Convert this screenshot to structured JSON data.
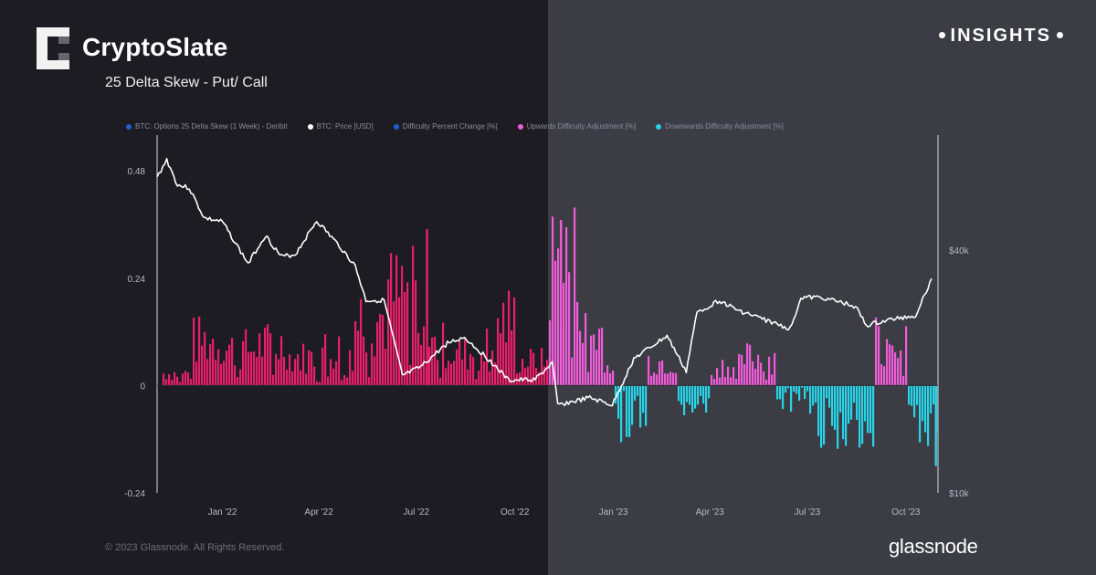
{
  "header": {
    "brand": "CryptoSlate",
    "subtitle": "25 Delta Skew - Put/ Call",
    "insights": "INSIGHTS"
  },
  "footer": {
    "copyright": "© 2023 Glassnode. All Rights Reserved.",
    "glassnode": "glassnode"
  },
  "legend": [
    {
      "label": "BTC: Options 25 Delta Skew (1 Week) - Deribit",
      "color": "#1f5fd6"
    },
    {
      "label": "BTC: Price [USD]",
      "color": "#ffffff"
    },
    {
      "label": "Difficulty Percent Change [%]",
      "color": "#1f5fd6"
    },
    {
      "label": "Upwards Difficulty Adjustment [%]",
      "color": "#f05bd8"
    },
    {
      "label": "Downwards Difficulty Adjustment [%]",
      "color": "#27d4e8"
    }
  ],
  "chart_data": {
    "type": "bar",
    "x_range": [
      "2021-11-01",
      "2023-10-31"
    ],
    "x_ticks": [
      "Jan '22",
      "Apr '22",
      "Jul '22",
      "Oct '22",
      "Jan '23",
      "Apr '23",
      "Jul '23",
      "Oct '23"
    ],
    "y_left": {
      "ticks": [
        "0.48",
        "0.24",
        "0",
        "-0.24"
      ],
      "ylim": [
        -0.24,
        0.56
      ]
    },
    "y_right": {
      "ticks": [
        "$40k",
        "$10k"
      ],
      "scale": "log"
    },
    "colors": {
      "skew_positive_2022": "#e8206a",
      "skew_positive_2023": "#f05bd8",
      "skew_negative": "#27d4e8",
      "price": "#ffffff"
    },
    "series": [
      {
        "name": "BTC: Options 25 Delta Skew (1 Week) - Deribit",
        "type": "bar",
        "monthly": [
          {
            "month": "2021-11",
            "value": 0.03
          },
          {
            "month": "2021-12",
            "value": 0.11
          },
          {
            "month": "2022-01",
            "value": 0.09
          },
          {
            "month": "2022-02",
            "value": 0.1
          },
          {
            "month": "2022-03",
            "value": 0.07
          },
          {
            "month": "2022-04",
            "value": 0.09
          },
          {
            "month": "2022-05",
            "value": 0.17
          },
          {
            "month": "2022-06",
            "value": 0.22
          },
          {
            "month": "2022-07",
            "value": 0.1
          },
          {
            "month": "2022-08",
            "value": 0.08
          },
          {
            "month": "2022-09",
            "value": 0.16
          },
          {
            "month": "2022-10",
            "value": 0.06
          },
          {
            "month": "2022-11",
            "value": 0.3
          },
          {
            "month": "2022-12",
            "value": 0.13
          },
          {
            "month": "2023-01",
            "value": -0.09
          },
          {
            "month": "2023-02",
            "value": 0.06
          },
          {
            "month": "2023-03",
            "value": -0.05
          },
          {
            "month": "2023-04",
            "value": 0.05
          },
          {
            "month": "2023-05",
            "value": 0.07
          },
          {
            "month": "2023-06",
            "value": -0.05
          },
          {
            "month": "2023-07",
            "value": -0.1
          },
          {
            "month": "2023-08",
            "value": -0.11
          },
          {
            "month": "2023-09",
            "value": 0.12
          },
          {
            "month": "2023-10",
            "value": -0.1
          }
        ]
      },
      {
        "name": "BTC: Price [USD]",
        "type": "line",
        "points": [
          {
            "date": "2021-11-01",
            "usd": 60500
          },
          {
            "date": "2021-11-10",
            "usd": 67000
          },
          {
            "date": "2021-11-20",
            "usd": 58000
          },
          {
            "date": "2021-12-01",
            "usd": 57000
          },
          {
            "date": "2021-12-15",
            "usd": 48000
          },
          {
            "date": "2022-01-01",
            "usd": 47000
          },
          {
            "date": "2022-01-25",
            "usd": 37000
          },
          {
            "date": "2022-02-10",
            "usd": 43500
          },
          {
            "date": "2022-02-25",
            "usd": 38500
          },
          {
            "date": "2022-03-10",
            "usd": 39000
          },
          {
            "date": "2022-03-30",
            "usd": 47300
          },
          {
            "date": "2022-04-20",
            "usd": 41000
          },
          {
            "date": "2022-05-05",
            "usd": 36500
          },
          {
            "date": "2022-05-15",
            "usd": 30000
          },
          {
            "date": "2022-06-01",
            "usd": 30000
          },
          {
            "date": "2022-06-18",
            "usd": 19500
          },
          {
            "date": "2022-07-05",
            "usd": 20500
          },
          {
            "date": "2022-07-30",
            "usd": 23500
          },
          {
            "date": "2022-08-15",
            "usd": 24300
          },
          {
            "date": "2022-09-10",
            "usd": 21000
          },
          {
            "date": "2022-09-25",
            "usd": 19000
          },
          {
            "date": "2022-10-20",
            "usd": 19100
          },
          {
            "date": "2022-11-05",
            "usd": 21000
          },
          {
            "date": "2022-11-10",
            "usd": 16500
          },
          {
            "date": "2022-12-10",
            "usd": 17200
          },
          {
            "date": "2022-12-31",
            "usd": 16500
          },
          {
            "date": "2023-01-20",
            "usd": 21500
          },
          {
            "date": "2023-02-20",
            "usd": 24500
          },
          {
            "date": "2023-03-10",
            "usd": 20000
          },
          {
            "date": "2023-03-20",
            "usd": 28000
          },
          {
            "date": "2023-04-10",
            "usd": 30000
          },
          {
            "date": "2023-04-25",
            "usd": 28500
          },
          {
            "date": "2023-05-20",
            "usd": 27000
          },
          {
            "date": "2023-06-15",
            "usd": 25500
          },
          {
            "date": "2023-06-25",
            "usd": 30500
          },
          {
            "date": "2023-07-15",
            "usd": 30500
          },
          {
            "date": "2023-08-15",
            "usd": 29000
          },
          {
            "date": "2023-08-25",
            "usd": 26000
          },
          {
            "date": "2023-09-20",
            "usd": 27000
          },
          {
            "date": "2023-10-10",
            "usd": 27500
          },
          {
            "date": "2023-10-25",
            "usd": 34000
          }
        ]
      },
      {
        "name": "Difficulty Percent Change [%]",
        "type": "bar"
      },
      {
        "name": "Upwards Difficulty Adjustment [%]",
        "type": "bar"
      },
      {
        "name": "Downwards Difficulty Adjustment [%]",
        "type": "bar"
      }
    ]
  }
}
